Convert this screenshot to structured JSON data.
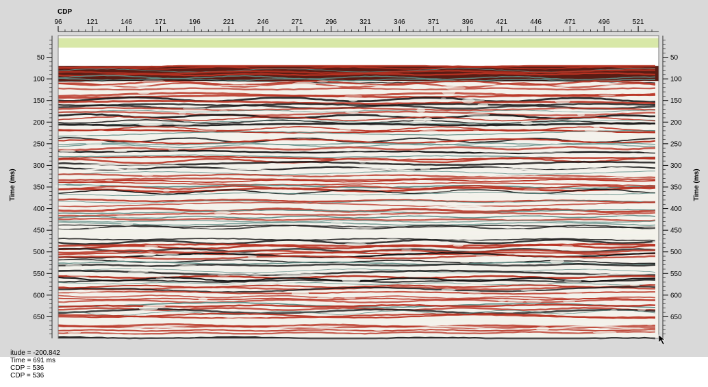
{
  "colors": {
    "panel": "#d9d9d9",
    "plot_bg": "#f4f2ec",
    "band_green": "#d8e8a8",
    "trace_red": "#b83222",
    "trace_black": "#141414",
    "trace_light": "#f2f2ea",
    "trace_teal": "#5f8c86"
  },
  "chart_data": {
    "type": "heatmap",
    "description_kind": "seismic section (wiggle/variable density)",
    "xlabel": "CDP",
    "ylabel_left": "Time (ms)",
    "ylabel_right": "Time (ms)",
    "x_ticks": [
      "96",
      "121",
      "146",
      "171",
      "196",
      "221",
      "246",
      "271",
      "296",
      "321",
      "346",
      "371",
      "396",
      "421",
      "446",
      "471",
      "496",
      "521"
    ],
    "x_range": [
      96,
      536
    ],
    "y_ticks": [
      "50",
      "100",
      "150",
      "200",
      "250",
      "300",
      "350",
      "400",
      "450",
      "500",
      "550",
      "600",
      "650"
    ],
    "y_range": [
      0,
      700
    ],
    "data_start_ms": 70,
    "green_band_ms": [
      6,
      28
    ],
    "first_tick_label_shown": "96",
    "x_tick_values": [
      96,
      121,
      146,
      171,
      196,
      221,
      246,
      271,
      296,
      321,
      346,
      371,
      396,
      421,
      446,
      471,
      496,
      521
    ],
    "y_tick_values": [
      50,
      100,
      150,
      200,
      250,
      300,
      350,
      400,
      450,
      500,
      550,
      600,
      650
    ]
  },
  "status_bar": {
    "amplitude_text": "itude = -200.842",
    "time_text": "Time = 691 ms",
    "cdp_text_1": "CDP = 536",
    "cdp_text_2": "CDP = 536"
  }
}
